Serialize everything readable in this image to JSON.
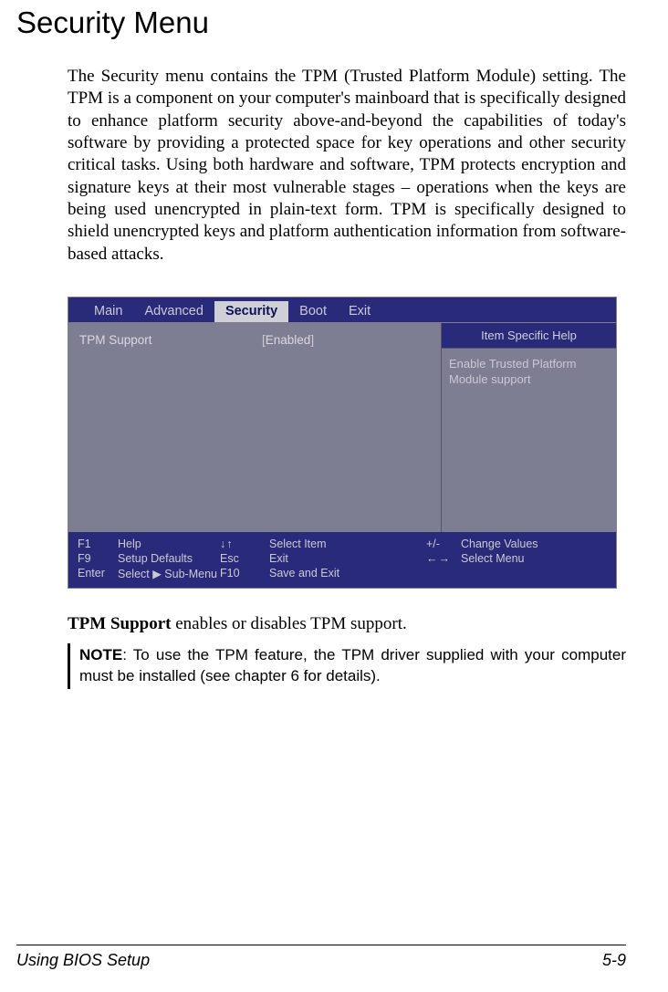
{
  "colors": {
    "bios_frame": "#2a2a7a",
    "bios_panel": "#7e7e92",
    "bios_tab_selected_bg": "#cfcfd8",
    "bios_tab_selected_fg": "#0f0f55",
    "bios_text": "#c9c9d6"
  },
  "title": "Security Menu",
  "intro_paragraph": "The Security menu contains the TPM (Trusted Platform Module) setting. The TPM is a component on your computer's mainboard that is specifically designed to enhance platform security above-and-beyond the capabilities of today's software by providing a protected space for key operations and other security critical tasks. Using both hardware and software, TPM protects encryption and signature keys at their most vulnerable stages – operations when the keys are being used unencrypted in plain-text form. TPM is specifically designed to shield unencrypted keys and platform authentication information from software-based attacks.",
  "bios": {
    "tabs": [
      {
        "label": "Main",
        "selected": false
      },
      {
        "label": "Advanced",
        "selected": false
      },
      {
        "label": "Security",
        "selected": true
      },
      {
        "label": "Boot",
        "selected": false
      },
      {
        "label": "Exit",
        "selected": false
      }
    ],
    "option": {
      "name": "TPM Support",
      "value": "Enabled"
    },
    "help": {
      "title": "Item Specific Help",
      "body": "Enable Trusted Platform Module support"
    },
    "footer": {
      "r1": {
        "k1": "F1",
        "k2": "Help",
        "a1": "↓↑",
        "a2": "Select Item",
        "k3": "+/-",
        "k4": "Change Values",
        "k5": "F9",
        "k6": "Setup Defaults"
      },
      "r2": {
        "k1": "Esc",
        "k2": "Exit",
        "a1": "←→",
        "a2": "Select Menu",
        "k3": "Enter",
        "k4": "Select ▶ Sub-Menu",
        "k5": "F10",
        "k6": "Save and Exit"
      }
    }
  },
  "tpm_support": {
    "label": "TPM Support",
    "desc": "  enables or disables TPM support."
  },
  "note": {
    "label": "NOTE",
    "text": ": To use the TPM feature, the TPM driver supplied with your computer must be installed (see chapter 6 for details)."
  },
  "footer": {
    "left": "Using BIOS Setup",
    "right": "5-9"
  }
}
